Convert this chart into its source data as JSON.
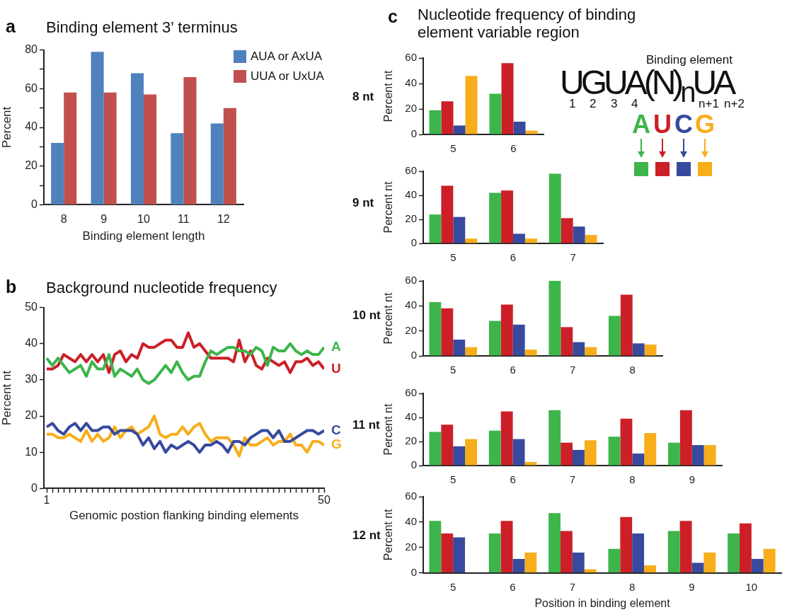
{
  "chart_data": [
    {
      "type": "bar",
      "title": "Binding element 3’ terminus",
      "annotations": [
        "a"
      ],
      "xlabel": "Binding element length",
      "ylabel": "Percent",
      "categories": [
        "8",
        "9",
        "10",
        "11",
        "12"
      ],
      "series": [
        {
          "name": "AUA or AxUA",
          "color": "#4f81bd",
          "values": [
            32,
            79,
            68,
            37,
            42
          ]
        },
        {
          "name": "UUA or UxUA",
          "color": "#c0504d",
          "values": [
            58,
            58,
            57,
            66,
            50
          ]
        }
      ],
      "ylim": [
        0,
        80
      ],
      "yticks": [
        0,
        {
          "value": 10,
          "label": null
        },
        20,
        {
          "value": 30,
          "label": null
        },
        40,
        {
          "value": 50,
          "label": null
        },
        60,
        {
          "value": 70,
          "label": null
        },
        80
      ],
      "legend": "top right"
    },
    {
      "type": "line",
      "title": "Background nucleotide frequency",
      "annotations": [
        "b"
      ],
      "xlabel": "Genomic postion flanking binding elements",
      "ylabel": "Percent nt",
      "x": [
        1,
        2,
        3,
        4,
        5,
        6,
        7,
        8,
        9,
        10,
        11,
        12,
        13,
        14,
        15,
        16,
        17,
        18,
        19,
        20,
        21,
        22,
        23,
        24,
        25,
        26,
        27,
        28,
        29,
        30,
        31,
        32,
        33,
        34,
        35,
        36,
        37,
        38,
        39,
        40,
        41,
        42,
        43,
        44,
        45,
        46,
        47,
        48,
        49,
        50
      ],
      "series": [
        {
          "name": "A",
          "color": "#3db54a",
          "values": [
            36,
            34,
            36,
            34,
            32,
            33,
            34,
            31,
            35,
            33,
            33,
            37,
            31,
            33,
            32,
            31,
            33,
            30,
            29,
            30,
            32,
            34,
            32,
            35,
            32,
            30,
            31,
            31,
            35,
            38,
            37,
            38,
            39,
            39,
            38,
            38,
            37,
            39,
            38,
            34,
            39,
            38,
            38,
            40,
            38,
            37,
            38,
            37,
            37,
            39
          ]
        },
        {
          "name": "U",
          "color": "#cc1f27",
          "values": [
            33,
            33,
            34,
            37,
            36,
            35,
            37,
            35,
            37,
            35,
            37,
            32,
            37,
            38,
            35,
            37,
            36,
            40,
            39,
            39,
            40,
            41,
            41,
            39,
            39,
            43,
            39,
            40,
            38,
            36,
            36,
            36,
            36,
            35,
            41,
            35,
            38,
            34,
            33,
            36,
            35,
            34,
            35,
            32,
            35,
            35,
            36,
            34,
            35,
            33
          ]
        },
        {
          "name": "C",
          "color": "#374a9e",
          "values": [
            17,
            18,
            16,
            15,
            17,
            18,
            16,
            18,
            16,
            16,
            17,
            17,
            15,
            16,
            16,
            16,
            15,
            12,
            14,
            11,
            13,
            10,
            12,
            11,
            12,
            13,
            12,
            10,
            12,
            12,
            13,
            12,
            10,
            13,
            13,
            12,
            14,
            15,
            16,
            16,
            14,
            16,
            13,
            13,
            14,
            15,
            16,
            16,
            15,
            16
          ]
        },
        {
          "name": "G",
          "color": "#f7ae1a",
          "values": [
            15,
            15,
            14,
            14,
            15,
            14,
            13,
            16,
            13,
            15,
            13,
            14,
            17,
            14,
            16,
            17,
            15,
            16,
            17,
            20,
            15,
            14,
            15,
            15,
            17,
            15,
            17,
            18,
            15,
            13,
            14,
            14,
            14,
            12,
            9,
            14,
            12,
            12,
            13,
            14,
            12,
            13,
            13,
            15,
            12,
            12,
            10,
            13,
            13,
            12
          ]
        }
      ],
      "xlim": [
        0.5,
        50
      ],
      "xticks": [
        1,
        {
          "value": 2,
          "label": null
        },
        {
          "value": 3,
          "label": null
        },
        {
          "value": 4,
          "label": null
        },
        {
          "value": 5,
          "label": null
        },
        {
          "value": 6,
          "label": null
        },
        {
          "value": 7,
          "label": null
        },
        {
          "value": 8,
          "label": null
        },
        {
          "value": 9,
          "label": null
        },
        {
          "value": 10,
          "label": null
        },
        {
          "value": 11,
          "label": null
        },
        {
          "value": 12,
          "label": null
        },
        {
          "value": 13,
          "label": null
        },
        {
          "value": 14,
          "label": null
        },
        {
          "value": 15,
          "label": null
        },
        {
          "value": 16,
          "label": null
        },
        {
          "value": 17,
          "label": null
        },
        {
          "value": 18,
          "label": null
        },
        {
          "value": 19,
          "label": null
        },
        {
          "value": 20,
          "label": null
        },
        {
          "value": 21,
          "label": null
        },
        {
          "value": 22,
          "label": null
        },
        {
          "value": 23,
          "label": null
        },
        {
          "value": 24,
          "label": null
        },
        {
          "value": 25,
          "label": null
        },
        {
          "value": 26,
          "label": null
        },
        {
          "value": 27,
          "label": null
        },
        {
          "value": 28,
          "label": null
        },
        {
          "value": 29,
          "label": null
        },
        {
          "value": 30,
          "label": null
        },
        {
          "value": 31,
          "label": null
        },
        {
          "value": 32,
          "label": null
        },
        {
          "value": 33,
          "label": null
        },
        {
          "value": 34,
          "label": null
        },
        {
          "value": 35,
          "label": null
        },
        {
          "value": 36,
          "label": null
        },
        {
          "value": 37,
          "label": null
        },
        {
          "value": 38,
          "label": null
        },
        {
          "value": 39,
          "label": null
        },
        {
          "value": 40,
          "label": null
        },
        {
          "value": 41,
          "label": null
        },
        {
          "value": 42,
          "label": null
        },
        {
          "value": 43,
          "label": null
        },
        {
          "value": 44,
          "label": null
        },
        {
          "value": 45,
          "label": null
        },
        {
          "value": 46,
          "label": null
        },
        {
          "value": 47,
          "label": null
        },
        {
          "value": 48,
          "label": null
        },
        {
          "value": 49,
          "label": null
        },
        50
      ],
      "ylim": [
        0,
        50
      ],
      "yticks": [
        0,
        10,
        20,
        30,
        40,
        50
      ]
    },
    {
      "type": "bar",
      "title": "Nucleotide frequency of binding element variable region",
      "annotations": [
        "c",
        "8 nt",
        "Binding element",
        "UGUA(N)$_{n}$UA",
        "1",
        "2",
        "3",
        "4",
        "n+1",
        "n+2"
      ],
      "ylabel": "Percent nt",
      "categories": [
        "5",
        "6"
      ],
      "series": [
        {
          "name": "A",
          "color": "#3db54a",
          "values": [
            19,
            32
          ]
        },
        {
          "name": "U",
          "color": "#cc1f27",
          "values": [
            26,
            56
          ]
        },
        {
          "name": "C",
          "color": "#374a9e",
          "values": [
            7,
            10
          ]
        },
        {
          "name": "G",
          "color": "#f7ae1a",
          "values": [
            46,
            3
          ]
        }
      ],
      "ylim": [
        0,
        60
      ],
      "yticks": [
        0,
        20,
        40,
        60
      ],
      "legend": "bottom right"
    },
    {
      "type": "bar",
      "annotations": [
        "9 nt"
      ],
      "ylabel": "Percent nt",
      "categories": [
        "5",
        "6",
        "7"
      ],
      "series": [
        {
          "color": "#3db54a",
          "values": [
            24,
            42,
            58
          ]
        },
        {
          "color": "#cc1f27",
          "values": [
            48,
            44,
            21
          ]
        },
        {
          "color": "#374a9e",
          "values": [
            22,
            8,
            14
          ]
        },
        {
          "color": "#f7ae1a",
          "values": [
            4,
            4,
            7
          ]
        }
      ],
      "ylim": [
        0,
        60
      ],
      "yticks": [
        0,
        20,
        40,
        60
      ]
    },
    {
      "type": "bar",
      "annotations": [
        "10 nt"
      ],
      "ylabel": "Percent nt",
      "categories": [
        "5",
        "6",
        "7",
        "8"
      ],
      "series": [
        {
          "color": "#3db54a",
          "values": [
            43,
            28,
            60,
            32
          ]
        },
        {
          "color": "#cc1f27",
          "values": [
            38,
            41,
            23,
            49
          ]
        },
        {
          "color": "#374a9e",
          "values": [
            13,
            25,
            11,
            10
          ]
        },
        {
          "color": "#f7ae1a",
          "values": [
            7,
            5,
            7,
            9
          ]
        }
      ],
      "ylim": [
        0,
        60
      ],
      "yticks": [
        0,
        20,
        40,
        60
      ]
    },
    {
      "type": "bar",
      "annotations": [
        "11 nt"
      ],
      "ylabel": "Percent nt",
      "categories": [
        "5",
        "6",
        "7",
        "8",
        "9"
      ],
      "series": [
        {
          "color": "#3db54a",
          "values": [
            28,
            29,
            46,
            24,
            19
          ]
        },
        {
          "color": "#cc1f27",
          "values": [
            34,
            45,
            19,
            39,
            46
          ]
        },
        {
          "color": "#374a9e",
          "values": [
            16,
            22,
            13,
            10,
            17
          ]
        },
        {
          "color": "#f7ae1a",
          "values": [
            22,
            3,
            21,
            27,
            17
          ]
        }
      ],
      "ylim": [
        0,
        60
      ],
      "yticks": [
        0,
        20,
        40,
        60
      ]
    },
    {
      "type": "bar",
      "annotations": [
        "12 nt"
      ],
      "xlabel": "Position in binding element",
      "ylabel": "Percent nt",
      "categories": [
        "5",
        "6",
        "7",
        "8",
        "9",
        "10"
      ],
      "series": [
        {
          "color": "#3db54a",
          "values": [
            41,
            31,
            47,
            19,
            33,
            31
          ]
        },
        {
          "color": "#cc1f27",
          "values": [
            31,
            41,
            33,
            44,
            41,
            39
          ]
        },
        {
          "color": "#374a9e",
          "values": [
            28,
            11,
            16,
            31,
            8,
            11
          ]
        },
        {
          "color": "#f7ae1a",
          "values": [
            0,
            16,
            3,
            6,
            16,
            19
          ]
        }
      ],
      "ylim": [
        0,
        60
      ],
      "yticks": [
        0,
        20,
        40,
        60
      ]
    }
  ]
}
